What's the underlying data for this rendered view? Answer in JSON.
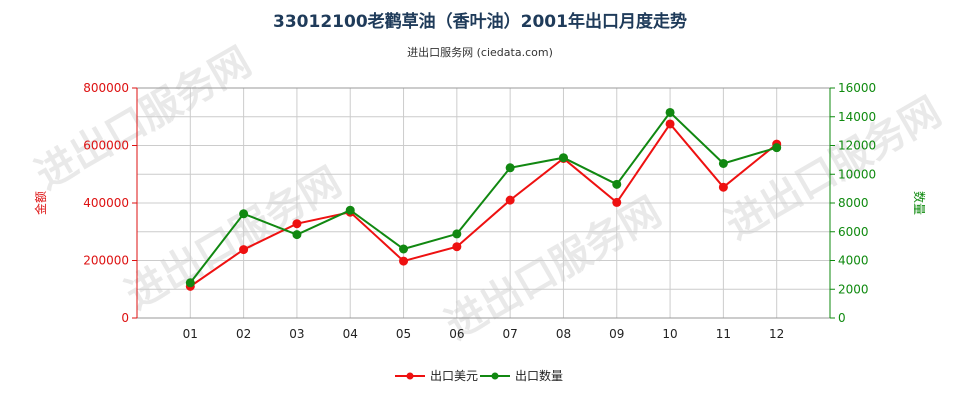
{
  "chart_data": {
    "type": "line",
    "title": "33012100老鹳草油（香叶油）2001年出口月度走势",
    "subtitle": "进出口服务网 (ciedata.com)",
    "categories": [
      "01",
      "02",
      "03",
      "04",
      "05",
      "06",
      "07",
      "08",
      "09",
      "10",
      "11",
      "12"
    ],
    "ylabel_left": "金额",
    "ylabel_right": "数量",
    "ylim_left": [
      0,
      800000
    ],
    "ylim_right": [
      0,
      16000
    ],
    "yticks_left": [
      "0",
      "200000",
      "400000",
      "600000",
      "800000"
    ],
    "yticks_right": [
      "0",
      "2000",
      "4000",
      "6000",
      "8000",
      "10000",
      "12000",
      "14000",
      "16000"
    ],
    "grid": true,
    "legend_position": "bottom",
    "series": [
      {
        "name": "出口美元",
        "axis": "left",
        "color": "#ee1111",
        "values": [
          110000,
          238000,
          328000,
          368000,
          198000,
          248000,
          410000,
          555000,
          402000,
          675000,
          455000,
          605000
        ]
      },
      {
        "name": "出口数量",
        "axis": "right",
        "color": "#118811",
        "values": [
          2450,
          7250,
          5800,
          7500,
          4800,
          5850,
          10450,
          11150,
          9300,
          14300,
          10750,
          11850
        ]
      }
    ],
    "watermark": "进出口服务网"
  }
}
